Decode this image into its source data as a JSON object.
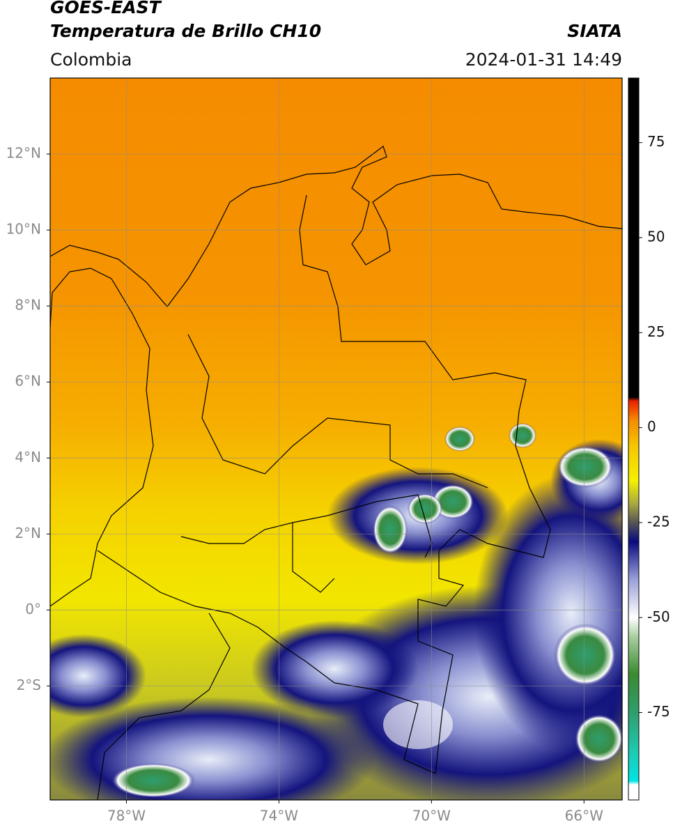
{
  "header": {
    "satellite": "GOES-EAST",
    "product": "Temperatura de Brillo CH10",
    "source": "SIATA",
    "region": "Colombia",
    "datetime": "2024-01-31 14:49"
  },
  "map": {
    "xlim": [
      -80,
      -65
    ],
    "ylim": [
      -5,
      14
    ],
    "xticks": [
      {
        "value": -78,
        "label": "78°W"
      },
      {
        "value": -74,
        "label": "74°W"
      },
      {
        "value": -70,
        "label": "70°W"
      },
      {
        "value": -66,
        "label": "66°W"
      }
    ],
    "yticks": [
      {
        "value": 12,
        "label": "12°N"
      },
      {
        "value": 10,
        "label": "10°N"
      },
      {
        "value": 8,
        "label": "8°N"
      },
      {
        "value": 6,
        "label": "6°N"
      },
      {
        "value": 4,
        "label": "4°N"
      },
      {
        "value": 2,
        "label": "2°N"
      },
      {
        "value": 0,
        "label": "0°"
      },
      {
        "value": -2,
        "label": "2°S"
      }
    ],
    "grid": true
  },
  "colorbar": {
    "range": [
      -98,
      92
    ],
    "ticks": [
      75,
      50,
      25,
      0,
      -25,
      -50,
      -75
    ],
    "stops": [
      {
        "value": -98,
        "color": "#ffffff"
      },
      {
        "value": -94,
        "color": "#ffffff"
      },
      {
        "value": -93,
        "color": "#00e5e5"
      },
      {
        "value": -85,
        "color": "#1fc8b0"
      },
      {
        "value": -75,
        "color": "#2f9e6e"
      },
      {
        "value": -65,
        "color": "#3a8a30"
      },
      {
        "value": -55,
        "color": "#a8cfa0"
      },
      {
        "value": -50,
        "color": "#ffffff"
      },
      {
        "value": -40,
        "color": "#9aa0d8"
      },
      {
        "value": -30,
        "color": "#0a0a80"
      },
      {
        "value": -25,
        "color": "#555555"
      },
      {
        "value": -20,
        "color": "#a8a840"
      },
      {
        "value": -14,
        "color": "#f5f000"
      },
      {
        "value": -5,
        "color": "#f5c800"
      },
      {
        "value": 2,
        "color": "#f58a00"
      },
      {
        "value": 7,
        "color": "#e82000"
      },
      {
        "value": 8,
        "color": "#000000"
      },
      {
        "value": 92,
        "color": "#000000"
      }
    ]
  }
}
